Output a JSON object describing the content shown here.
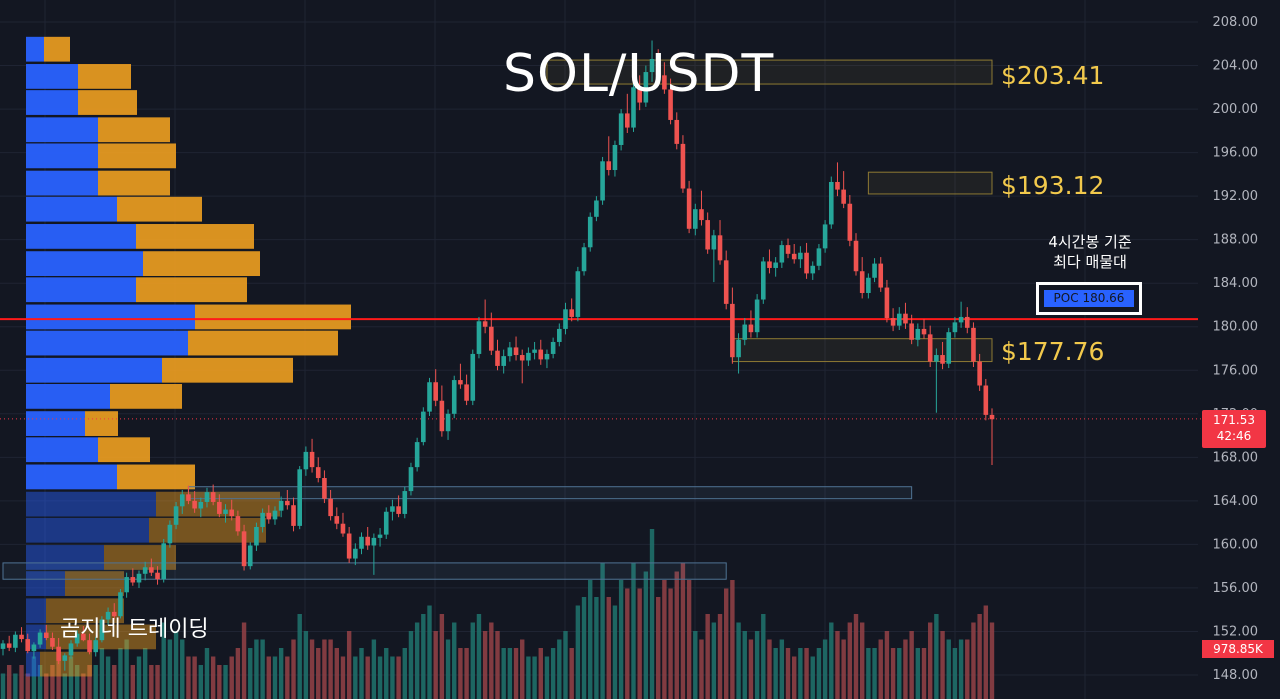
{
  "chart_data": {
    "type": "candlestick",
    "title": "SOL/USDT",
    "y_axis": {
      "position": "right",
      "ylim": [
        146,
        209
      ],
      "ticks": [
        "148.00",
        "152.00",
        "156.00",
        "160.00",
        "164.00",
        "168.00",
        "172.00",
        "176.00",
        "180.00",
        "184.00",
        "188.00",
        "192.00",
        "196.00",
        "200.00",
        "204.00",
        "208.00"
      ]
    },
    "grid": true,
    "current_price": {
      "value": "171.53",
      "countdown": "42:46"
    },
    "volume_value": "978.85K",
    "poc": {
      "label": "POC",
      "value": "180.66",
      "line_price": 180.7
    },
    "levels": [
      {
        "label": "$203.41",
        "low": 202.3,
        "high": 204.5,
        "x_start": 88
      },
      {
        "label": "$193.12",
        "low": 192.2,
        "high": 194.2,
        "x_start": 140
      },
      {
        "label": "$177.76",
        "low": 176.8,
        "high": 178.9,
        "x_start": 118
      }
    ],
    "support_zones": [
      {
        "low": 164.2,
        "high": 165.3,
        "x_start": 30,
        "x_end": 147
      },
      {
        "low": 156.8,
        "high": 158.3,
        "x_start": 0,
        "x_end": 117
      }
    ],
    "annotation": [
      "4시간봉 기준",
      "최다 매물대"
    ],
    "watermark": "곰지네 트레이딩",
    "volume_profile": {
      "bin_size": 2.46,
      "rows": [
        {
          "price": 205.5,
          "buy": 18,
          "sell": 26
        },
        {
          "price": 203.0,
          "buy": 52,
          "sell": 53
        },
        {
          "price": 200.6,
          "buy": 52,
          "sell": 59
        },
        {
          "price": 198.1,
          "buy": 72,
          "sell": 72
        },
        {
          "price": 195.7,
          "buy": 72,
          "sell": 78
        },
        {
          "price": 193.2,
          "buy": 72,
          "sell": 72
        },
        {
          "price": 190.8,
          "buy": 91,
          "sell": 85
        },
        {
          "price": 188.3,
          "buy": 110,
          "sell": 118
        },
        {
          "price": 185.8,
          "buy": 117,
          "sell": 117
        },
        {
          "price": 183.4,
          "buy": 110,
          "sell": 111
        },
        {
          "price": 180.9,
          "buy": 169,
          "sell": 156
        },
        {
          "price": 178.5,
          "buy": 162,
          "sell": 150
        },
        {
          "price": 176.0,
          "buy": 136,
          "sell": 131
        },
        {
          "price": 173.6,
          "buy": 84,
          "sell": 72
        },
        {
          "price": 171.1,
          "buy": 59,
          "sell": 33
        },
        {
          "price": 168.7,
          "buy": 72,
          "sell": 52
        },
        {
          "price": 166.2,
          "buy": 91,
          "sell": 78
        },
        {
          "price": 163.7,
          "buy": 130,
          "sell": 124
        },
        {
          "price": 161.3,
          "buy": 123,
          "sell": 117
        },
        {
          "price": 158.8,
          "buy": 78,
          "sell": 72
        },
        {
          "price": 156.4,
          "buy": 39,
          "sell": 59
        },
        {
          "price": 153.9,
          "buy": 20,
          "sell": 78
        },
        {
          "price": 151.5,
          "buy": 20,
          "sell": 110
        },
        {
          "price": 149.0,
          "buy": 14,
          "sell": 52
        }
      ]
    },
    "candles": [
      [
        150.4,
        151.2,
        149.8,
        150.9
      ],
      [
        150.9,
        151.6,
        150.2,
        150.5
      ],
      [
        150.5,
        152.0,
        150.1,
        151.7
      ],
      [
        151.7,
        152.4,
        151.0,
        151.3
      ],
      [
        151.3,
        151.8,
        150.0,
        150.2
      ],
      [
        150.2,
        151.0,
        149.5,
        150.8
      ],
      [
        150.8,
        152.2,
        150.5,
        151.9
      ],
      [
        151.9,
        152.6,
        151.2,
        151.4
      ],
      [
        151.4,
        151.9,
        150.3,
        150.6
      ],
      [
        150.6,
        151.4,
        149.0,
        149.3
      ],
      [
        149.3,
        150.0,
        148.4,
        149.8
      ],
      [
        149.8,
        151.2,
        149.5,
        150.9
      ],
      [
        150.9,
        152.1,
        150.6,
        151.8
      ],
      [
        151.8,
        152.5,
        151.1,
        151.2
      ],
      [
        151.2,
        151.8,
        149.9,
        150.1
      ],
      [
        150.1,
        151.5,
        149.7,
        151.2
      ],
      [
        151.2,
        153.4,
        151.0,
        153.1
      ],
      [
        153.1,
        154.2,
        152.6,
        153.8
      ],
      [
        153.8,
        154.6,
        153.1,
        153.4
      ],
      [
        153.4,
        155.9,
        153.2,
        155.6
      ],
      [
        155.6,
        157.4,
        155.1,
        157.0
      ],
      [
        157.0,
        157.8,
        156.2,
        156.5
      ],
      [
        156.5,
        157.6,
        156.0,
        157.3
      ],
      [
        157.3,
        158.4,
        156.7,
        157.9
      ],
      [
        157.9,
        158.7,
        157.1,
        157.4
      ],
      [
        157.4,
        158.0,
        156.3,
        156.8
      ],
      [
        156.8,
        160.5,
        156.5,
        160.1
      ],
      [
        160.1,
        162.2,
        159.7,
        161.8
      ],
      [
        161.8,
        163.9,
        161.4,
        163.5
      ],
      [
        163.5,
        165.0,
        162.8,
        164.6
      ],
      [
        164.6,
        165.4,
        163.7,
        164.0
      ],
      [
        164.0,
        164.9,
        162.9,
        163.3
      ],
      [
        163.3,
        164.3,
        162.5,
        163.9
      ],
      [
        163.9,
        165.2,
        163.4,
        164.8
      ],
      [
        164.8,
        165.5,
        163.6,
        163.9
      ],
      [
        163.9,
        164.6,
        162.5,
        162.8
      ],
      [
        162.8,
        163.7,
        162.0,
        163.2
      ],
      [
        163.2,
        164.1,
        162.2,
        162.6
      ],
      [
        162.6,
        163.1,
        160.8,
        161.2
      ],
      [
        161.2,
        161.8,
        157.6,
        158.0
      ],
      [
        158.0,
        160.2,
        157.7,
        159.9
      ],
      [
        159.9,
        162.0,
        159.4,
        161.6
      ],
      [
        161.6,
        163.3,
        161.1,
        162.9
      ],
      [
        162.9,
        163.6,
        161.9,
        162.3
      ],
      [
        162.3,
        163.5,
        161.8,
        163.1
      ],
      [
        163.1,
        164.4,
        162.5,
        164.0
      ],
      [
        164.0,
        165.0,
        163.2,
        163.6
      ],
      [
        163.6,
        164.3,
        161.2,
        161.7
      ],
      [
        161.7,
        167.2,
        161.4,
        166.9
      ],
      [
        166.9,
        169.0,
        166.3,
        168.5
      ],
      [
        168.5,
        169.7,
        166.6,
        167.1
      ],
      [
        167.1,
        168.0,
        165.7,
        166.1
      ],
      [
        166.1,
        166.8,
        163.8,
        164.2
      ],
      [
        164.2,
        165.0,
        162.2,
        162.6
      ],
      [
        162.6,
        163.4,
        161.4,
        161.9
      ],
      [
        161.9,
        162.9,
        160.7,
        161.0
      ],
      [
        161.0,
        161.6,
        158.3,
        158.7
      ],
      [
        158.7,
        160.1,
        158.1,
        159.6
      ],
      [
        159.6,
        161.1,
        159.1,
        160.7
      ],
      [
        160.7,
        161.6,
        159.5,
        159.9
      ],
      [
        159.9,
        161.0,
        157.2,
        160.6
      ],
      [
        160.6,
        161.5,
        159.8,
        160.9
      ],
      [
        160.9,
        163.4,
        160.5,
        163.0
      ],
      [
        163.0,
        164.1,
        162.2,
        163.5
      ],
      [
        163.5,
        164.5,
        162.5,
        162.8
      ],
      [
        162.8,
        165.3,
        162.4,
        164.9
      ],
      [
        164.9,
        167.5,
        164.5,
        167.1
      ],
      [
        167.1,
        169.8,
        166.7,
        169.4
      ],
      [
        169.4,
        172.6,
        169.1,
        172.2
      ],
      [
        172.2,
        175.3,
        171.8,
        174.9
      ],
      [
        174.9,
        176.1,
        172.7,
        173.2
      ],
      [
        173.2,
        174.6,
        169.9,
        170.4
      ],
      [
        170.4,
        172.4,
        169.6,
        172.0
      ],
      [
        172.0,
        175.5,
        171.6,
        175.1
      ],
      [
        175.1,
        176.6,
        174.3,
        174.7
      ],
      [
        174.7,
        175.6,
        172.8,
        173.2
      ],
      [
        173.2,
        177.9,
        172.8,
        177.5
      ],
      [
        177.5,
        180.9,
        177.1,
        180.5
      ],
      [
        180.5,
        182.5,
        179.4,
        180.0
      ],
      [
        180.0,
        181.3,
        177.4,
        177.8
      ],
      [
        177.8,
        178.8,
        176.0,
        176.4
      ],
      [
        176.4,
        177.9,
        175.7,
        177.3
      ],
      [
        177.3,
        178.6,
        176.8,
        178.1
      ],
      [
        178.1,
        179.1,
        176.9,
        177.4
      ],
      [
        177.4,
        177.9,
        174.8,
        176.9
      ],
      [
        176.9,
        178.1,
        176.4,
        177.6
      ],
      [
        177.6,
        178.6,
        177.0,
        177.9
      ],
      [
        177.9,
        178.8,
        176.5,
        177.0
      ],
      [
        177.0,
        177.9,
        176.2,
        177.5
      ],
      [
        177.5,
        179.0,
        177.1,
        178.6
      ],
      [
        178.6,
        180.3,
        178.2,
        179.8
      ],
      [
        179.8,
        182.2,
        179.3,
        181.6
      ],
      [
        181.6,
        182.6,
        180.5,
        180.9
      ],
      [
        180.9,
        185.5,
        180.5,
        185.1
      ],
      [
        185.1,
        187.7,
        184.7,
        187.3
      ],
      [
        187.3,
        190.5,
        186.9,
        190.1
      ],
      [
        190.1,
        192.0,
        189.7,
        191.6
      ],
      [
        191.6,
        195.6,
        191.2,
        195.2
      ],
      [
        195.2,
        197.5,
        193.9,
        194.4
      ],
      [
        194.4,
        197.1,
        193.8,
        196.7
      ],
      [
        196.7,
        200.0,
        196.2,
        199.6
      ],
      [
        199.6,
        201.4,
        197.8,
        198.3
      ],
      [
        198.3,
        202.6,
        197.9,
        202.0
      ],
      [
        202.0,
        203.1,
        199.9,
        200.6
      ],
      [
        200.6,
        204.0,
        200.2,
        203.4
      ],
      [
        203.4,
        206.3,
        202.5,
        204.6
      ],
      [
        204.6,
        205.5,
        202.5,
        203.1
      ],
      [
        203.1,
        204.3,
        201.4,
        201.8
      ],
      [
        201.8,
        202.8,
        198.6,
        199.0
      ],
      [
        199.0,
        199.7,
        196.3,
        196.8
      ],
      [
        196.8,
        197.6,
        192.3,
        192.7
      ],
      [
        192.7,
        193.4,
        188.6,
        189.0
      ],
      [
        189.0,
        191.3,
        188.4,
        190.8
      ],
      [
        190.8,
        192.5,
        189.3,
        189.8
      ],
      [
        189.8,
        190.5,
        186.7,
        187.1
      ],
      [
        187.1,
        188.9,
        184.1,
        188.4
      ],
      [
        188.4,
        189.8,
        185.7,
        186.1
      ],
      [
        186.1,
        187.0,
        181.6,
        182.1
      ],
      [
        182.1,
        183.6,
        176.6,
        177.2
      ],
      [
        177.2,
        179.4,
        175.7,
        178.8
      ],
      [
        178.8,
        180.8,
        178.3,
        180.2
      ],
      [
        180.2,
        181.5,
        179.0,
        179.5
      ],
      [
        179.5,
        183.0,
        179.0,
        182.5
      ],
      [
        182.5,
        186.4,
        182.1,
        186.0
      ],
      [
        186.0,
        187.1,
        184.9,
        185.4
      ],
      [
        185.4,
        186.4,
        184.6,
        185.9
      ],
      [
        185.9,
        187.9,
        185.4,
        187.5
      ],
      [
        187.5,
        188.1,
        186.3,
        186.7
      ],
      [
        186.7,
        187.6,
        185.8,
        186.2
      ],
      [
        186.2,
        187.4,
        185.4,
        186.8
      ],
      [
        186.8,
        187.7,
        184.4,
        184.9
      ],
      [
        184.9,
        186.0,
        184.3,
        185.6
      ],
      [
        185.6,
        187.6,
        185.2,
        187.2
      ],
      [
        187.2,
        189.8,
        186.8,
        189.4
      ],
      [
        189.4,
        193.8,
        189.0,
        193.3
      ],
      [
        193.3,
        195.1,
        192.0,
        192.6
      ],
      [
        192.6,
        194.3,
        190.9,
        191.3
      ],
      [
        191.3,
        192.1,
        187.4,
        187.9
      ],
      [
        187.9,
        188.6,
        184.7,
        185.1
      ],
      [
        185.1,
        186.4,
        182.6,
        183.1
      ],
      [
        183.1,
        184.9,
        182.6,
        184.5
      ],
      [
        184.5,
        186.3,
        184.1,
        185.8
      ],
      [
        185.8,
        186.4,
        183.2,
        183.6
      ],
      [
        183.6,
        184.3,
        180.4,
        180.8
      ],
      [
        180.8,
        181.7,
        179.6,
        180.1
      ],
      [
        180.1,
        181.8,
        179.7,
        181.2
      ],
      [
        181.2,
        182.2,
        179.8,
        180.3
      ],
      [
        180.3,
        181.1,
        178.4,
        178.8
      ],
      [
        178.8,
        180.3,
        178.2,
        179.8
      ],
      [
        179.8,
        180.7,
        178.9,
        179.3
      ],
      [
        179.3,
        180.1,
        176.3,
        176.8
      ],
      [
        176.8,
        178.0,
        172.1,
        177.4
      ],
      [
        177.4,
        178.6,
        176.1,
        176.6
      ],
      [
        176.6,
        179.9,
        176.2,
        179.5
      ],
      [
        179.5,
        180.9,
        179.0,
        180.4
      ],
      [
        180.4,
        182.3,
        179.9,
        180.9
      ],
      [
        180.9,
        181.8,
        179.4,
        179.9
      ],
      [
        179.9,
        180.4,
        176.3,
        176.8
      ],
      [
        176.8,
        177.5,
        174.1,
        174.6
      ],
      [
        174.6,
        175.2,
        171.4,
        171.9
      ],
      [
        171.9,
        172.5,
        167.3,
        171.5
      ]
    ],
    "volume": [
      3,
      4,
      3,
      4,
      3,
      5,
      4,
      3,
      4,
      6,
      3,
      5,
      4,
      3,
      4,
      4,
      6,
      5,
      4,
      6,
      7,
      4,
      5,
      6,
      4,
      4,
      9,
      7,
      8,
      7,
      5,
      5,
      4,
      6,
      5,
      4,
      4,
      5,
      6,
      9,
      6,
      7,
      7,
      5,
      5,
      6,
      5,
      7,
      10,
      8,
      7,
      6,
      7,
      7,
      6,
      5,
      8,
      5,
      6,
      5,
      7,
      5,
      6,
      5,
      5,
      6,
      8,
      9,
      10,
      11,
      8,
      10,
      7,
      9,
      6,
      6,
      9,
      10,
      8,
      9,
      8,
      6,
      6,
      6,
      7,
      5,
      5,
      6,
      5,
      6,
      7,
      8,
      6,
      11,
      12,
      14,
      12,
      16,
      12,
      11,
      14,
      13,
      16,
      13,
      15,
      20,
      12,
      14,
      13,
      15,
      16,
      14,
      8,
      7,
      10,
      9,
      10,
      13,
      14,
      9,
      8,
      7,
      8,
      10,
      7,
      6,
      7,
      6,
      5,
      6,
      6,
      5,
      6,
      7,
      9,
      8,
      7,
      9,
      10,
      9,
      6,
      6,
      7,
      8,
      6,
      6,
      7,
      8,
      6,
      6,
      9,
      10,
      8,
      7,
      6,
      7,
      7,
      9,
      10,
      11,
      9
    ],
    "colors": {
      "up": "#26a69a",
      "down": "#ef5350",
      "poc_line": "#ff1a1a",
      "profile_buy": "#2962ff",
      "profile_sell": "#f0a020",
      "level": "#f2c94c"
    }
  }
}
